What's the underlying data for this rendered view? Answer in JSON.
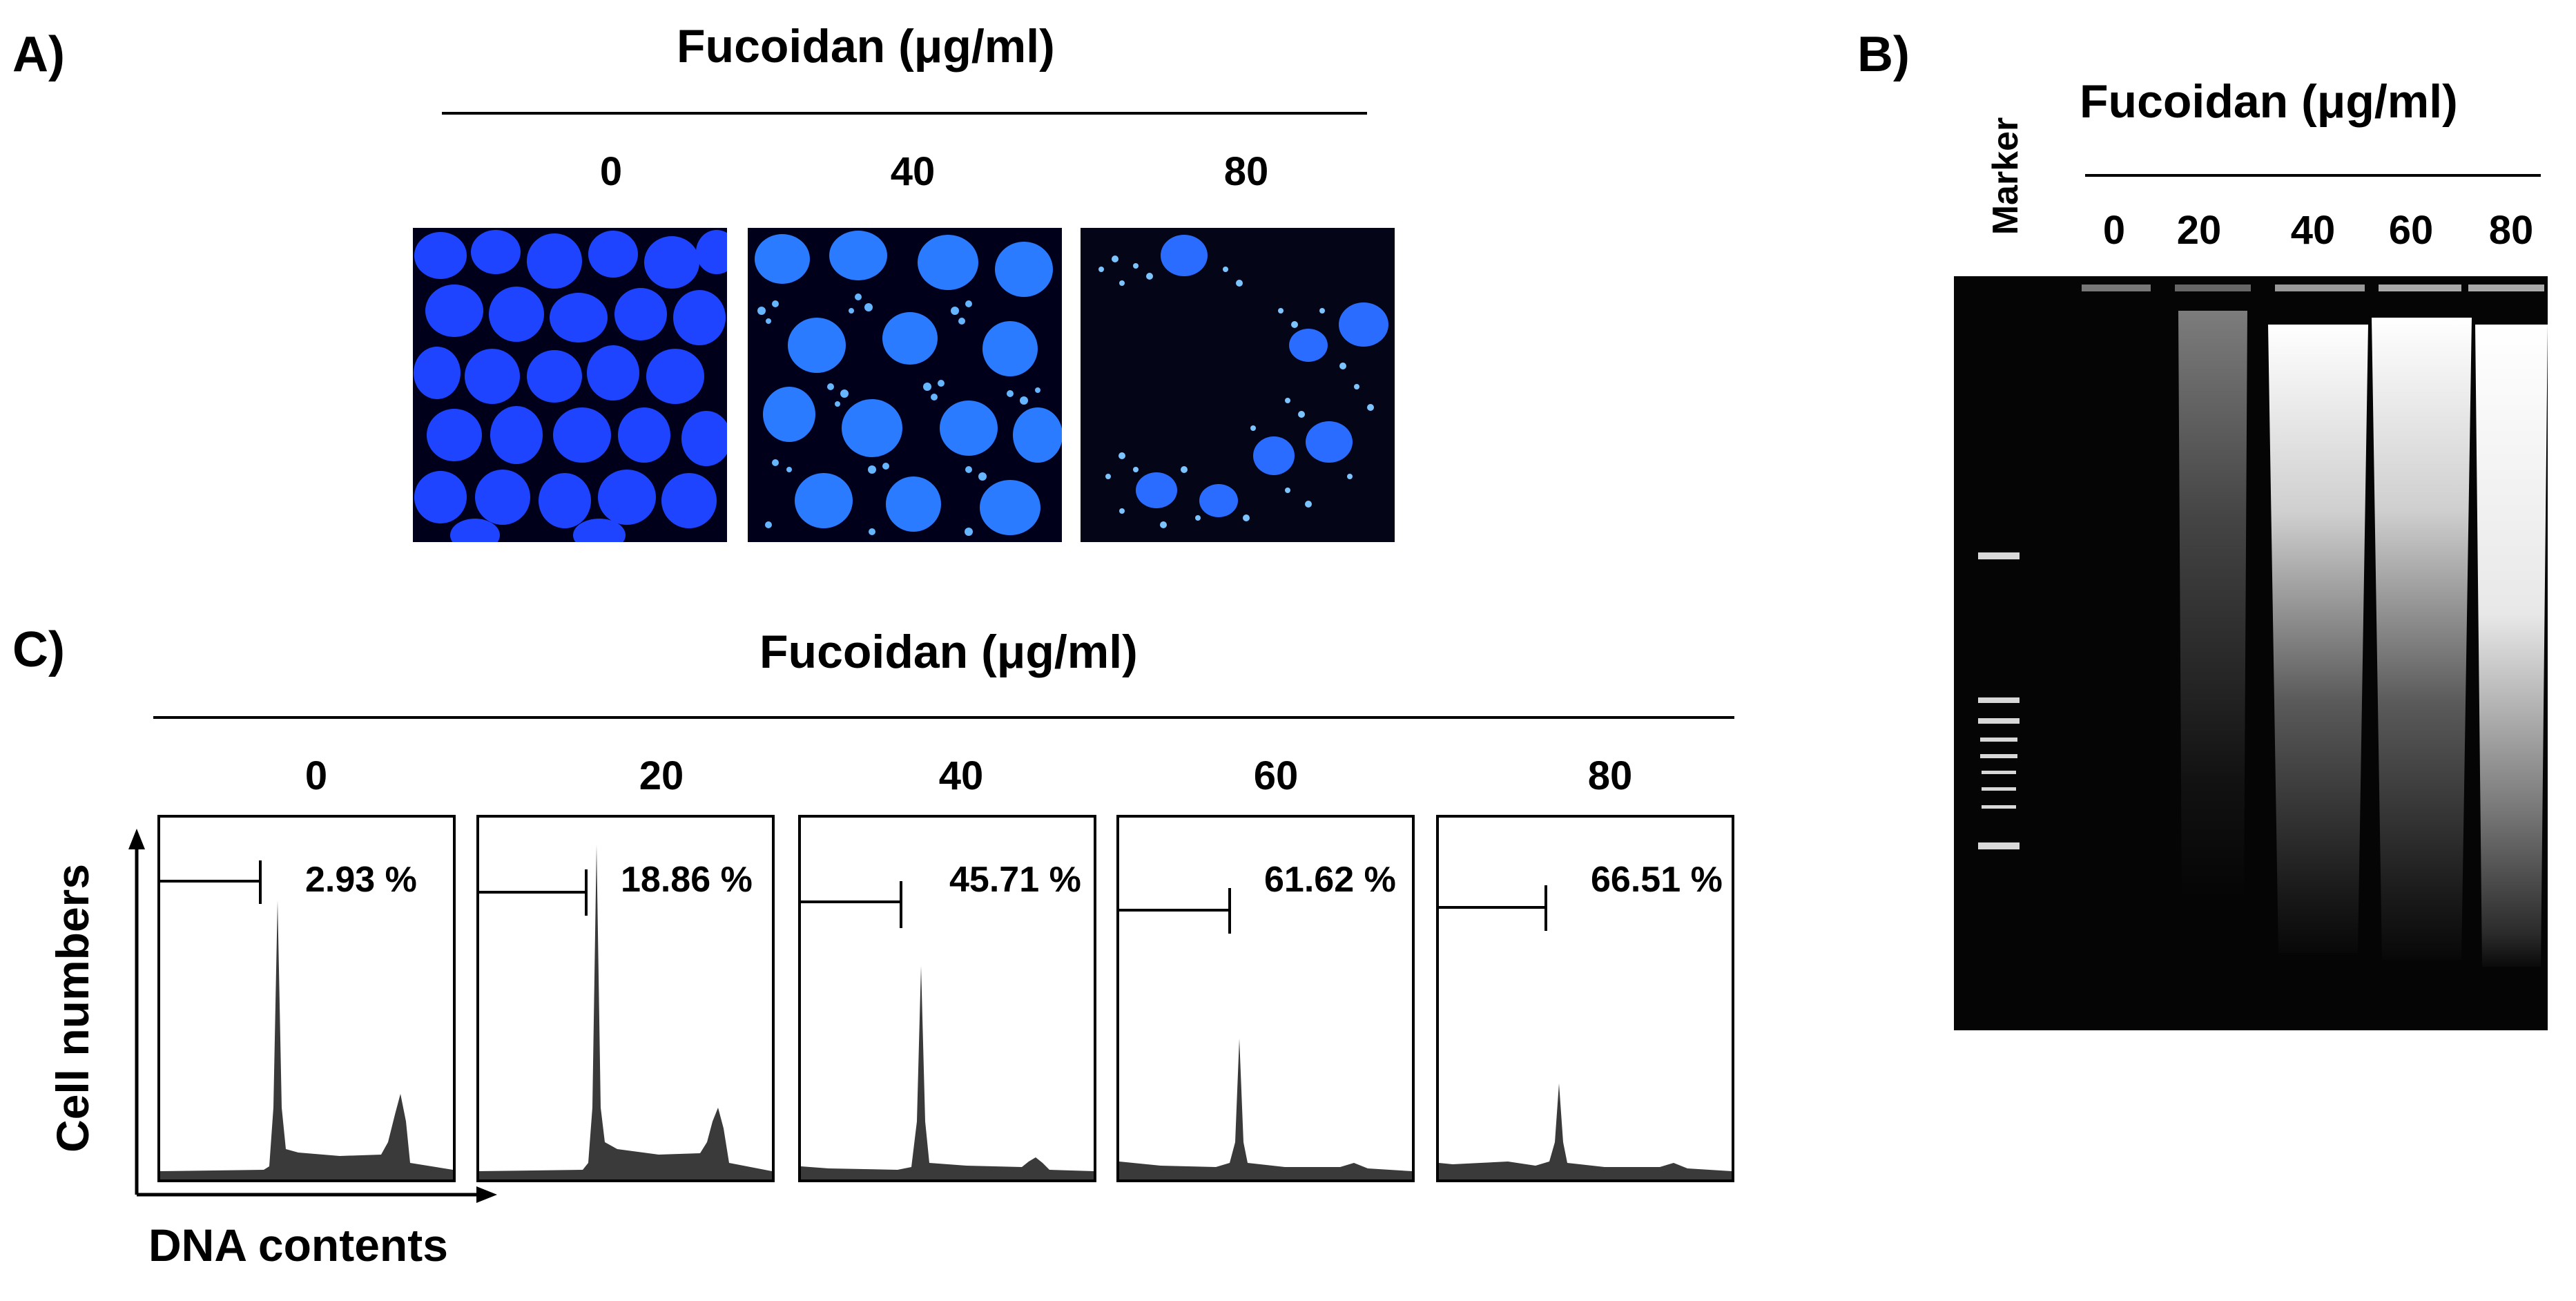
{
  "panel_a": {
    "label": "A)",
    "title": "Fucoidan (μg/ml)",
    "concentrations": [
      "0",
      "40",
      "80"
    ]
  },
  "panel_b": {
    "label": "B)",
    "title": "Fucoidan (μg/ml)",
    "marker_label": "Marker",
    "concentrations": [
      "0",
      "20",
      "40",
      "60",
      "80"
    ]
  },
  "panel_c": {
    "label": "C)",
    "title": "Fucoidan (μg/ml)",
    "y_axis": "Cell numbers",
    "x_axis": "DNA contents",
    "histograms": [
      {
        "concentration": "0",
        "percent": "2.93 %"
      },
      {
        "concentration": "20",
        "percent": "18.86 %"
      },
      {
        "concentration": "40",
        "percent": "45.71 %"
      },
      {
        "concentration": "60",
        "percent": "61.62 %"
      },
      {
        "concentration": "80",
        "percent": "66.51 %"
      }
    ]
  },
  "colors": {
    "nucleus": "#1a3cff",
    "background": "#000000",
    "gel_background": "#050505",
    "histogram_fill": "#3a3a3a"
  }
}
